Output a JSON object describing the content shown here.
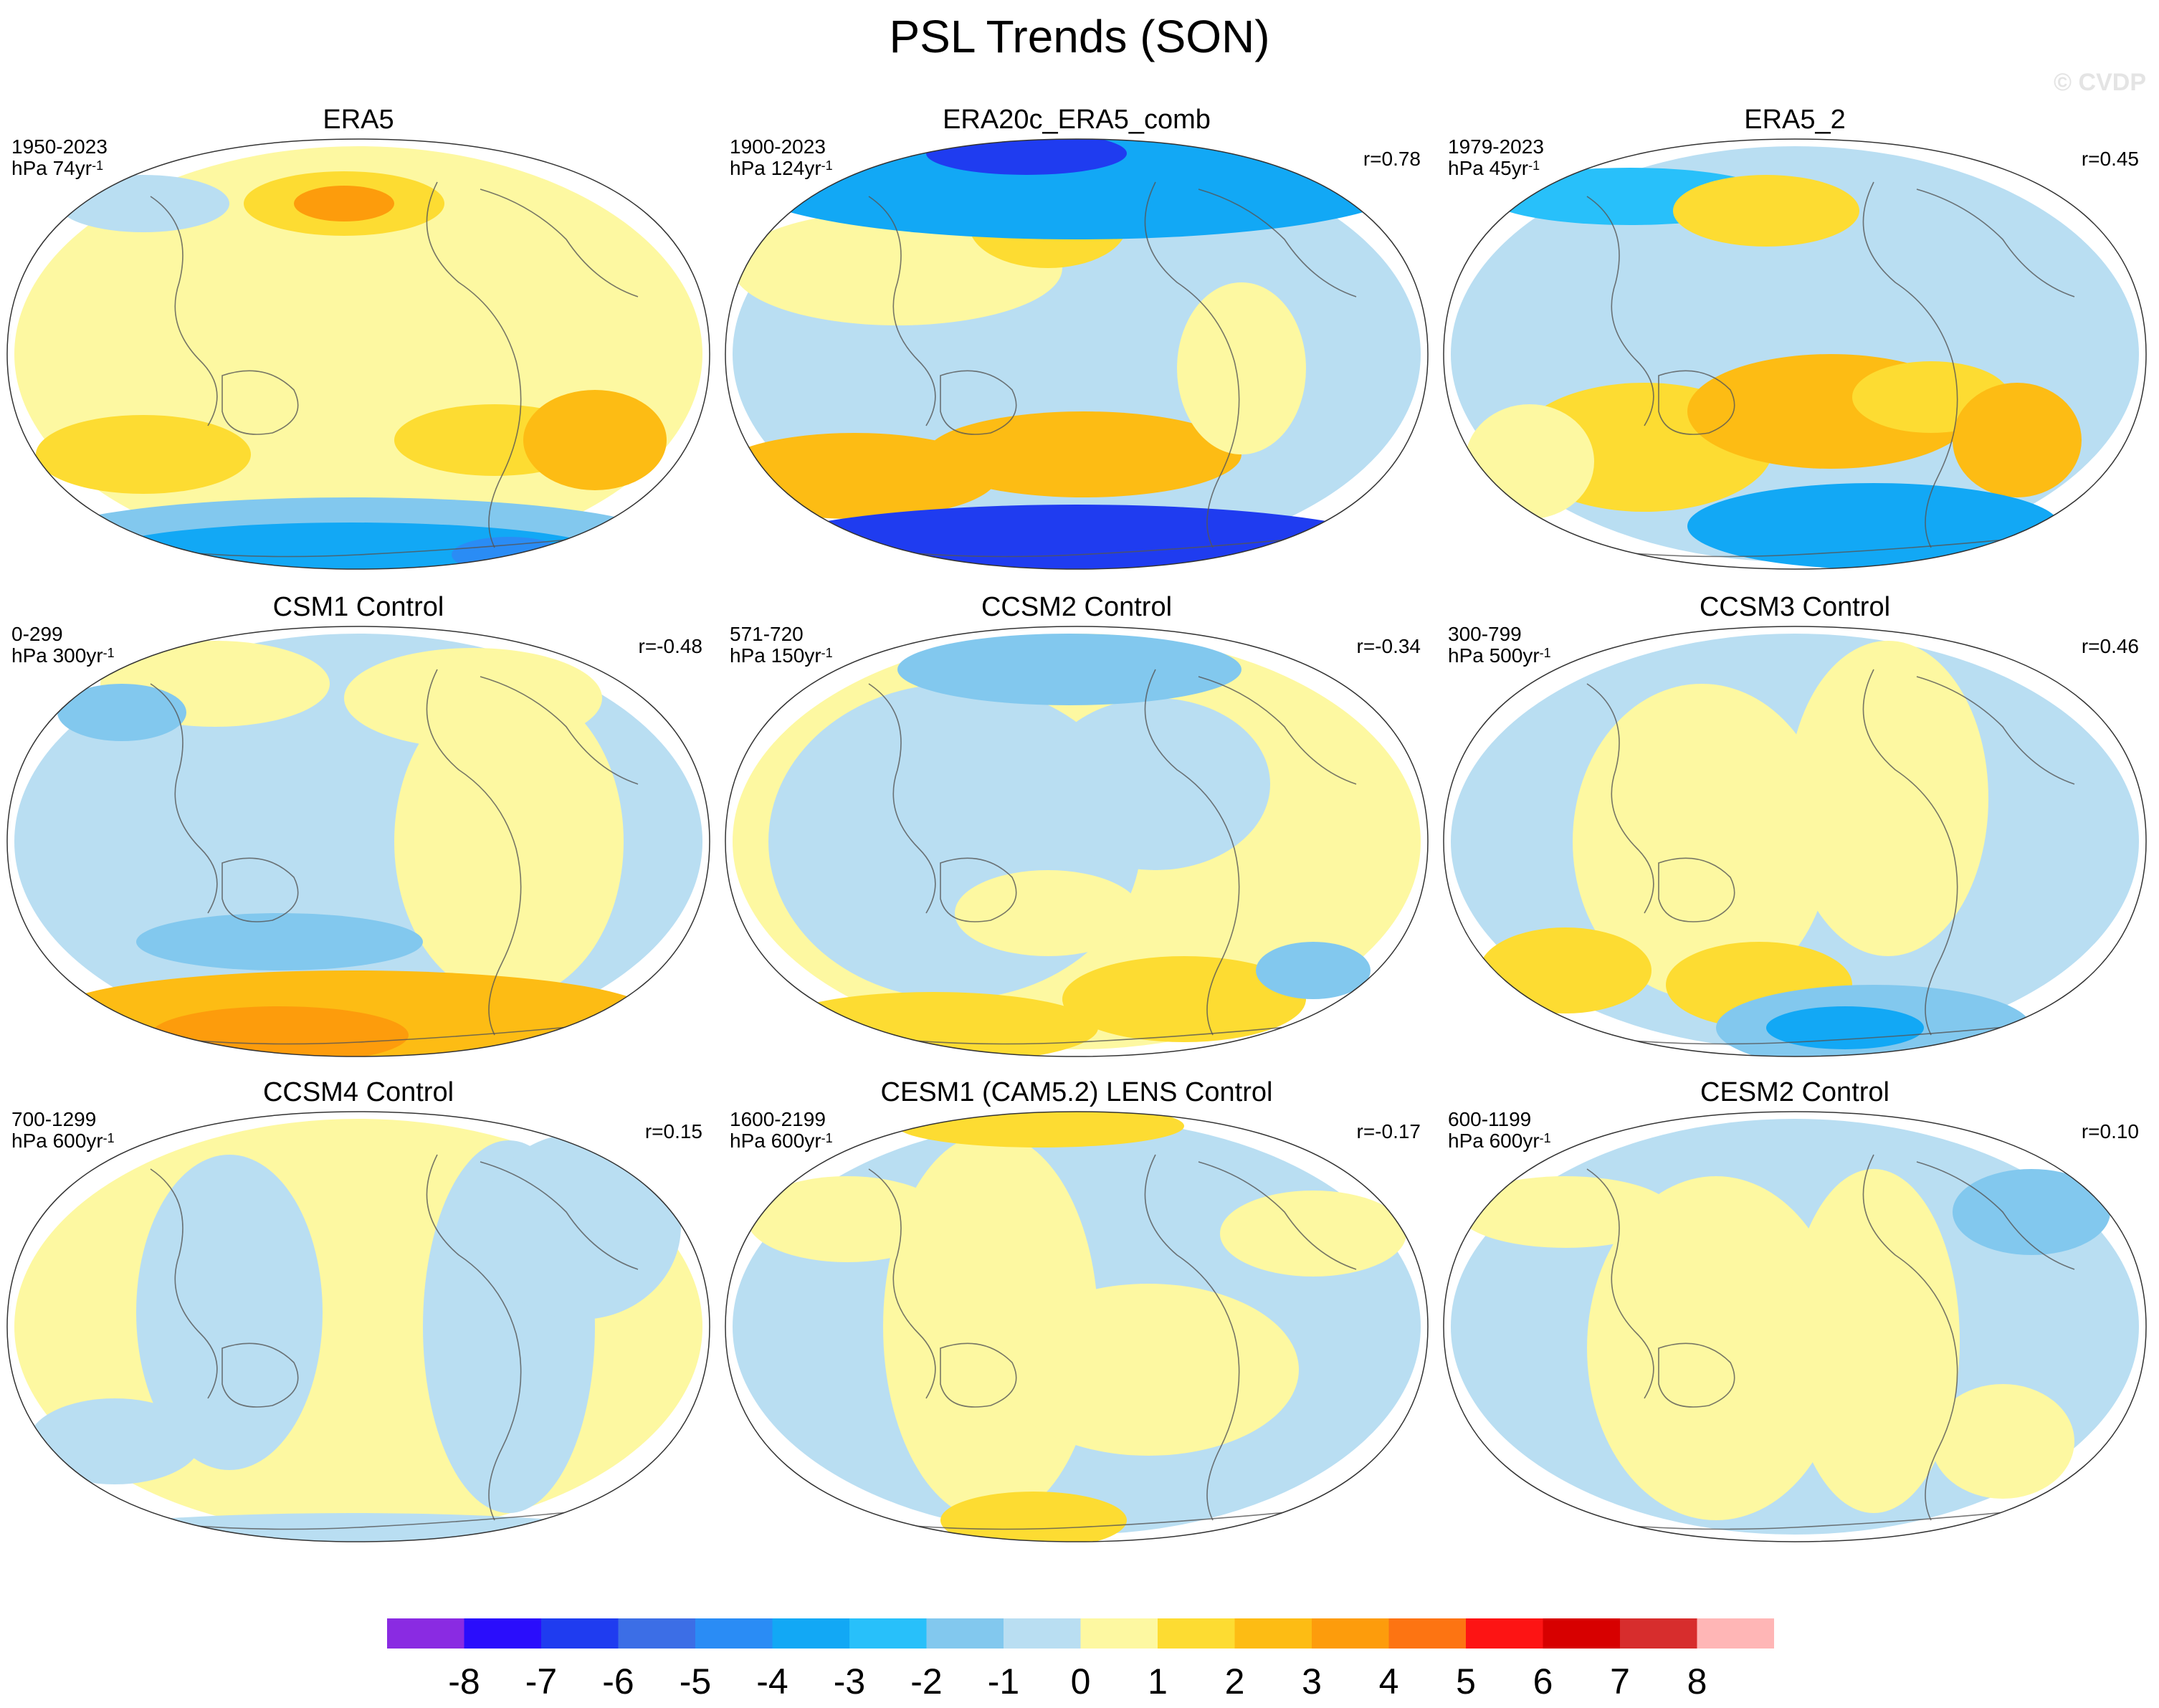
{
  "figure": {
    "title": "PSL Trends (SON)",
    "watermark": "© CVDP"
  },
  "panels": [
    {
      "title": "ERA5",
      "years": "1950-2023",
      "units_main": "hPa 74yr",
      "units_exp": "-1",
      "r": ""
    },
    {
      "title": "ERA20c_ERA5_comb",
      "years": "1900-2023",
      "units_main": "hPa 124yr",
      "units_exp": "-1",
      "r": "r=0.78"
    },
    {
      "title": "ERA5_2",
      "years": "1979-2023",
      "units_main": "hPa 45yr",
      "units_exp": "-1",
      "r": "r=0.45"
    },
    {
      "title": "CSM1 Control",
      "years": "0-299",
      "units_main": "hPa 300yr",
      "units_exp": "-1",
      "r": "r=-0.48"
    },
    {
      "title": "CCSM2 Control",
      "years": "571-720",
      "units_main": "hPa 150yr",
      "units_exp": "-1",
      "r": "r=-0.34"
    },
    {
      "title": "CCSM3 Control",
      "years": "300-799",
      "units_main": "hPa 500yr",
      "units_exp": "-1",
      "r": "r=0.46"
    },
    {
      "title": "CCSM4 Control",
      "years": "700-1299",
      "units_main": "hPa 600yr",
      "units_exp": "-1",
      "r": "r=0.15"
    },
    {
      "title": "CESM1 (CAM5.2) LENS Control",
      "years": "1600-2199",
      "units_main": "hPa 600yr",
      "units_exp": "-1",
      "r": "r=-0.17"
    },
    {
      "title": "CESM2 Control",
      "years": "600-1199",
      "units_main": "hPa 600yr",
      "units_exp": "-1",
      "r": "r=0.10"
    }
  ],
  "colorbar": {
    "labels": [
      "-8",
      "-7",
      "-6",
      "-5",
      "-4",
      "-3",
      "-2",
      "-1",
      "0",
      "1",
      "2",
      "3",
      "4",
      "5",
      "6",
      "7",
      "8"
    ],
    "colors": [
      "#8a2be2",
      "#2a0dfc",
      "#1f3cf0",
      "#3c6ee6",
      "#2a8cf5",
      "#12a8f5",
      "#28c0fa",
      "#82c8ee",
      "#b9def2",
      "#fdf8a1",
      "#fddc32",
      "#fdbc14",
      "#fd9c0c",
      "#fd7412",
      "#fd1414",
      "#d70000",
      "#d72d2d",
      "#ffb6b6"
    ]
  }
}
